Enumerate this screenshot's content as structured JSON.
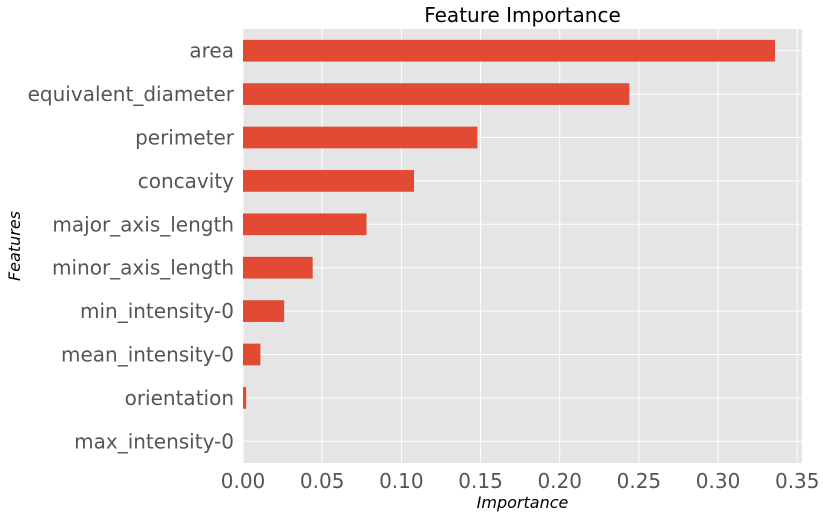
{
  "chart_data": {
    "type": "bar",
    "orientation": "horizontal",
    "title": "Feature Importance",
    "xlabel": "Importance",
    "ylabel": "Features",
    "categories": [
      "area",
      "equivalent_diameter",
      "perimeter",
      "concavity",
      "major_axis_length",
      "minor_axis_length",
      "min_intensity-0",
      "mean_intensity-0",
      "orientation",
      "max_intensity-0"
    ],
    "values": [
      0.336,
      0.244,
      0.148,
      0.108,
      0.078,
      0.044,
      0.026,
      0.011,
      0.002,
      0.0
    ],
    "xlim": [
      0,
      0.353
    ],
    "xticks": [
      0.0,
      0.05,
      0.1,
      0.15,
      0.2,
      0.25,
      0.3,
      0.35
    ],
    "xtick_labels": [
      "0.00",
      "0.05",
      "0.10",
      "0.15",
      "0.20",
      "0.25",
      "0.30",
      "0.35"
    ],
    "grid": true,
    "colors": {
      "bar": "#E24A33",
      "background": "#E5E5E5",
      "grid": "#FFFFFF"
    }
  }
}
